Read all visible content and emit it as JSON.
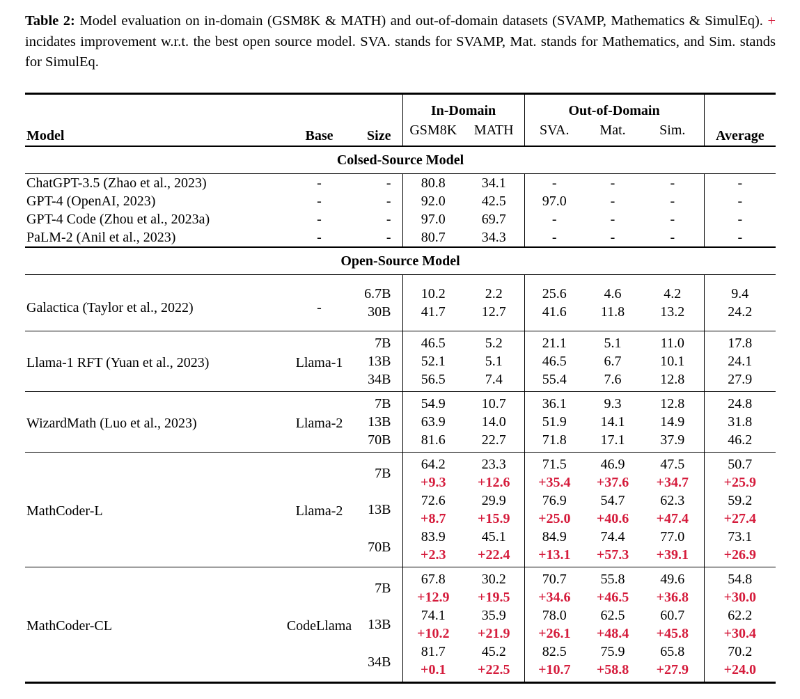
{
  "caption": {
    "label": "Table 2:",
    "text_before_plus": "Model evaluation on in-domain (GSM8K & MATH) and out-of-domain datasets (SVAMP, Mathematics & SimulEq).",
    "plus_sign": "+",
    "text_after_plus": "incidates improvement w.r.t. the best open source model. SVA. stands for SVAMP, Mat. stands for Mathematics, and Sim. stands for SimulEq."
  },
  "colors": {
    "improvement_red": "#d51c3c",
    "text": "#000000",
    "background": "#ffffff"
  },
  "table": {
    "header": {
      "model": "Model",
      "base": "Base",
      "size": "Size",
      "in_domain": "In-Domain",
      "out_of_domain": "Out-of-Domain",
      "average": "Average",
      "sub_columns": [
        "GSM8K",
        "MATH",
        "SVA.",
        "Mat.",
        "Sim."
      ]
    },
    "sections": [
      {
        "title": "Colsed-Source Model",
        "blocks": [
          {
            "rows": [
              {
                "model": "ChatGPT-3.5 (Zhao et al., 2023)",
                "base": "-",
                "size": "-",
                "values": [
                  "80.8",
                  "34.1",
                  "-",
                  "-",
                  "-",
                  "-"
                ]
              },
              {
                "model": "GPT-4 (OpenAI, 2023)",
                "base": "-",
                "size": "-",
                "values": [
                  "92.0",
                  "42.5",
                  "97.0",
                  "-",
                  "-",
                  "-"
                ]
              },
              {
                "model": "GPT-4 Code (Zhou et al., 2023a)",
                "base": "-",
                "size": "-",
                "values": [
                  "97.0",
                  "69.7",
                  "-",
                  "-",
                  "-",
                  "-"
                ]
              },
              {
                "model": "PaLM-2 (Anil et al., 2023)",
                "base": "-",
                "size": "-",
                "values": [
                  "80.7",
                  "34.3",
                  "-",
                  "-",
                  "-",
                  "-"
                ]
              }
            ]
          }
        ]
      },
      {
        "title": "Open-Source Model",
        "blocks": [
          {
            "model": "Galactica (Taylor et al., 2022)",
            "base": "-",
            "rows": [
              {
                "size": "6.7B",
                "values": [
                  "10.2",
                  "2.2",
                  "25.6",
                  "4.6",
                  "4.2",
                  "9.4"
                ]
              },
              {
                "size": "30B",
                "values": [
                  "41.7",
                  "12.7",
                  "41.6",
                  "11.8",
                  "13.2",
                  "24.2"
                ]
              }
            ]
          },
          {
            "model": "Llama-1 RFT (Yuan et al., 2023)",
            "base": "Llama-1",
            "rows": [
              {
                "size": "7B",
                "values": [
                  "46.5",
                  "5.2",
                  "21.1",
                  "5.1",
                  "11.0",
                  "17.8"
                ]
              },
              {
                "size": "13B",
                "values": [
                  "52.1",
                  "5.1",
                  "46.5",
                  "6.7",
                  "10.1",
                  "24.1"
                ]
              },
              {
                "size": "34B",
                "values": [
                  "56.5",
                  "7.4",
                  "55.4",
                  "7.6",
                  "12.8",
                  "27.9"
                ]
              }
            ]
          },
          {
            "model": "WizardMath (Luo et al., 2023)",
            "base": "Llama-2",
            "rows": [
              {
                "size": "7B",
                "values": [
                  "54.9",
                  "10.7",
                  "36.1",
                  "9.3",
                  "12.8",
                  "24.8"
                ]
              },
              {
                "size": "13B",
                "values": [
                  "63.9",
                  "14.0",
                  "51.9",
                  "14.1",
                  "14.9",
                  "31.8"
                ]
              },
              {
                "size": "70B",
                "values": [
                  "81.6",
                  "22.7",
                  "71.8",
                  "17.1",
                  "37.9",
                  "46.2"
                ]
              }
            ]
          },
          {
            "model": "MathCoder-L",
            "base": "Llama-2",
            "rows": [
              {
                "size": "7B",
                "values": [
                  "64.2",
                  "23.3",
                  "71.5",
                  "46.9",
                  "47.5",
                  "50.7"
                ],
                "improvements": [
                  "+9.3",
                  "+12.6",
                  "+35.4",
                  "+37.6",
                  "+34.7",
                  "+25.9"
                ]
              },
              {
                "size": "13B",
                "values": [
                  "72.6",
                  "29.9",
                  "76.9",
                  "54.7",
                  "62.3",
                  "59.2"
                ],
                "improvements": [
                  "+8.7",
                  "+15.9",
                  "+25.0",
                  "+40.6",
                  "+47.4",
                  "+27.4"
                ]
              },
              {
                "size": "70B",
                "values": [
                  "83.9",
                  "45.1",
                  "84.9",
                  "74.4",
                  "77.0",
                  "73.1"
                ],
                "improvements": [
                  "+2.3",
                  "+22.4",
                  "+13.1",
                  "+57.3",
                  "+39.1",
                  "+26.9"
                ]
              }
            ]
          },
          {
            "model": "MathCoder-CL",
            "base": "CodeLlama",
            "rows": [
              {
                "size": "7B",
                "values": [
                  "67.8",
                  "30.2",
                  "70.7",
                  "55.8",
                  "49.6",
                  "54.8"
                ],
                "improvements": [
                  "+12.9",
                  "+19.5",
                  "+34.6",
                  "+46.5",
                  "+36.8",
                  "+30.0"
                ]
              },
              {
                "size": "13B",
                "values": [
                  "74.1",
                  "35.9",
                  "78.0",
                  "62.5",
                  "60.7",
                  "62.2"
                ],
                "improvements": [
                  "+10.2",
                  "+21.9",
                  "+26.1",
                  "+48.4",
                  "+45.8",
                  "+30.4"
                ]
              },
              {
                "size": "34B",
                "values": [
                  "81.7",
                  "45.2",
                  "82.5",
                  "75.9",
                  "65.8",
                  "70.2"
                ],
                "improvements": [
                  "+0.1",
                  "+22.5",
                  "+10.7",
                  "+58.8",
                  "+27.9",
                  "+24.0"
                ]
              }
            ]
          }
        ]
      }
    ]
  }
}
